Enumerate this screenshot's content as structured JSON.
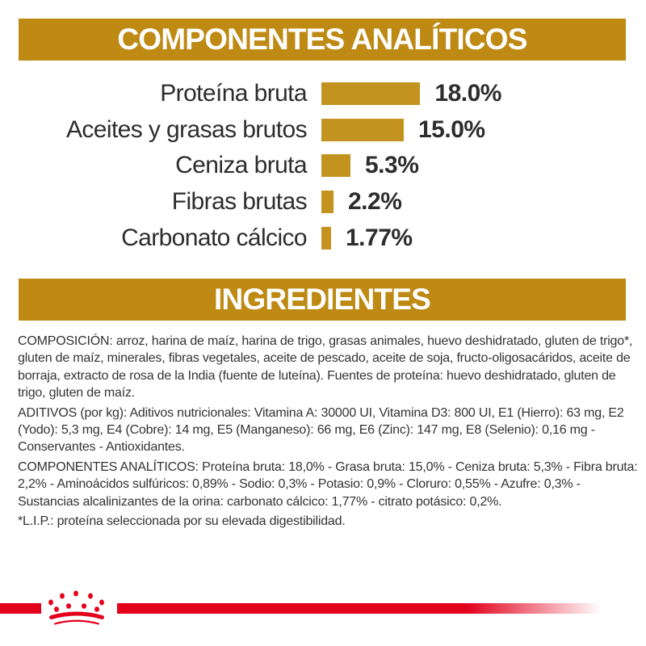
{
  "sections": {
    "analytics_title": "COMPONENTES ANALÍTICOS",
    "ingredients_title": "INGREDIENTES"
  },
  "chart_data": {
    "type": "bar",
    "orientation": "horizontal",
    "title": "COMPONENTES ANALÍTICOS",
    "categories": [
      "Proteína bruta",
      "Aceites y grasas brutos",
      "Ceniza bruta",
      "Fibras brutas",
      "Carbonato cálcico"
    ],
    "values": [
      18.0,
      15.0,
      5.3,
      2.2,
      1.77
    ],
    "value_labels": [
      "18.0%",
      "15.0%",
      "5.3%",
      "2.2%",
      "1.77%"
    ],
    "unit": "%",
    "xlim": [
      0,
      18
    ],
    "grid": false,
    "value_label_position": "right-of-bar",
    "bar_color": "#C4921E"
  },
  "ingredients": {
    "paragraphs": [
      "COMPOSICIÓN: arroz, harina de maíz, harina de trigo, grasas animales, huevo deshidratado, gluten de trigo*, gluten de maíz, minerales, fibras vegetales, aceite de pescado, aceite de soja, fructo-oligosacáridos, aceite de borraja, extracto de rosa de la India (fuente de luteína). Fuentes de proteína: huevo deshidratado, gluten de trigo, gluten de maíz.",
      "ADITIVOS (por kg): Aditivos nutricionales: Vitamina A: 30000 UI, Vitamina D3: 800 UI, E1 (Hierro): 63 mg, E2 (Yodo): 5,3 mg, E4 (Cobre): 14 mg, E5 (Manganeso): 66 mg, E6 (Zinc): 147 mg, E8 (Selenio): 0,16 mg - Conservantes - Antioxidantes.",
      "COMPONENTES ANALÍTICOS: Proteína bruta: 18,0% - Grasa bruta: 15,0% - Ceniza bruta: 5,3% - Fibra bruta: 2,2% - Aminoácidos sulfúricos: 0,89% - Sodio: 0,3% - Potasio: 0,9% - Cloruro: 0,55% - Azufre: 0,3% - Sustancias alcalinizantes de la orina: carbonato cálcico: 1,77% - citrato potásico: 0,2%.",
      "*L.I.P.: proteína seleccionada por su elevada digestibilidad."
    ]
  },
  "footer": {
    "logo": "royal-canin-crown"
  },
  "colors": {
    "band_gold": "#BE8A14",
    "bar_gold": "#C4921E",
    "brand_red": "#E2001A",
    "text": "#333333"
  }
}
